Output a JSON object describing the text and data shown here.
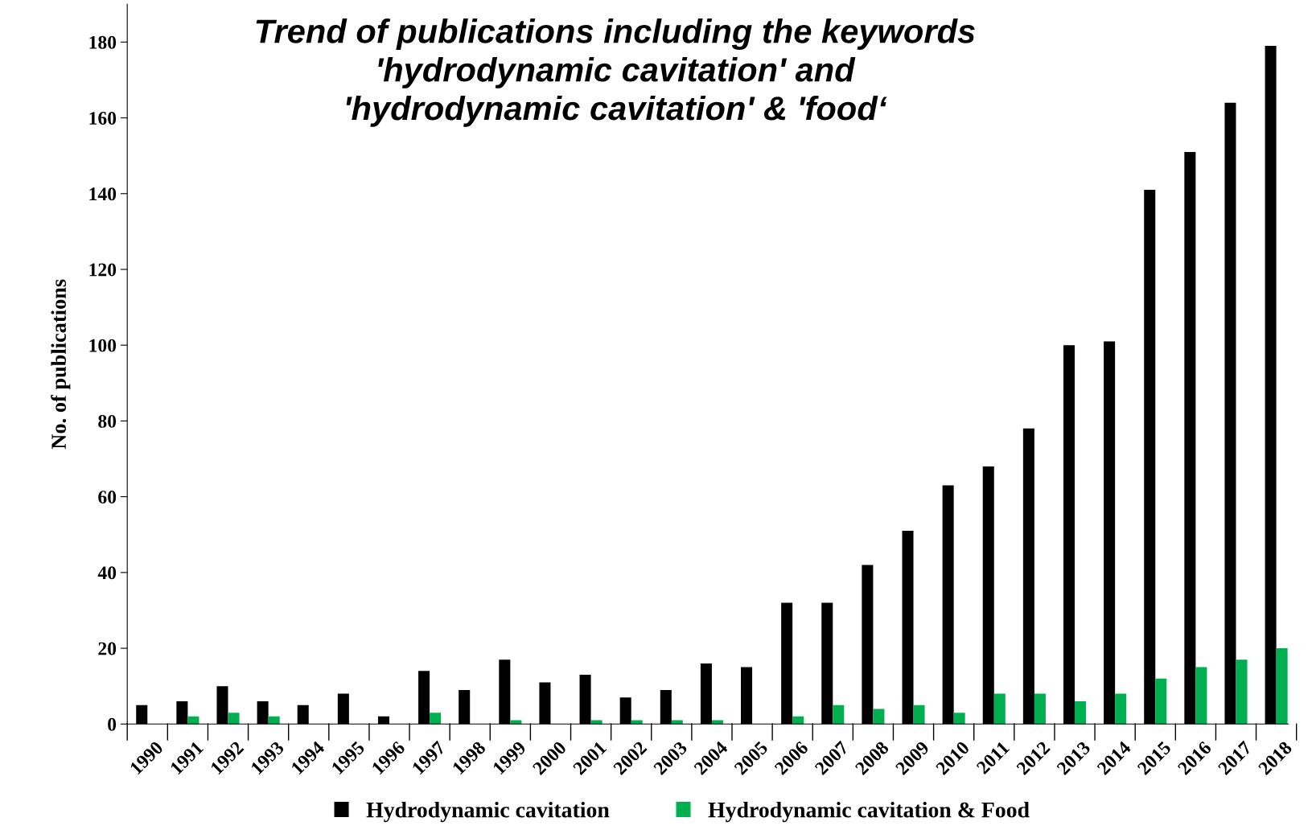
{
  "chart_data": {
    "type": "bar",
    "title": "Trend of publications including the keywords\n'hydrodynamic cavitation' and\n'hydrodynamic cavitation' & 'food‘",
    "ylabel": "No. of publications",
    "categories": [
      "1990",
      "1991",
      "1992",
      "1993",
      "1994",
      "1995",
      "1996",
      "1997",
      "1998",
      "1999",
      "2000",
      "2001",
      "2002",
      "2003",
      "2004",
      "2005",
      "2006",
      "2007",
      "2008",
      "2009",
      "2010",
      "2011",
      "2012",
      "2013",
      "2014",
      "2015",
      "2016",
      "2017",
      "2018"
    ],
    "series": [
      {
        "name": "Hydrodynamic cavitation",
        "color": "#000000",
        "values": [
          5,
          6,
          10,
          6,
          5,
          8,
          2,
          14,
          9,
          17,
          11,
          13,
          7,
          9,
          16,
          15,
          32,
          32,
          42,
          51,
          63,
          68,
          78,
          100,
          101,
          141,
          151,
          164,
          179
        ]
      },
      {
        "name": "Hydrodynamic cavitation & Food",
        "color": "#00b050",
        "values": [
          0,
          2,
          3,
          2,
          0,
          0,
          0,
          3,
          0,
          1,
          0,
          1,
          1,
          1,
          1,
          0,
          2,
          5,
          4,
          5,
          3,
          8,
          8,
          6,
          8,
          12,
          15,
          17,
          20
        ]
      }
    ],
    "ylim": [
      0,
      190
    ],
    "yticks": [
      0,
      20,
      40,
      60,
      80,
      100,
      120,
      140,
      160,
      180
    ],
    "grid": false,
    "legend": "bottom"
  }
}
